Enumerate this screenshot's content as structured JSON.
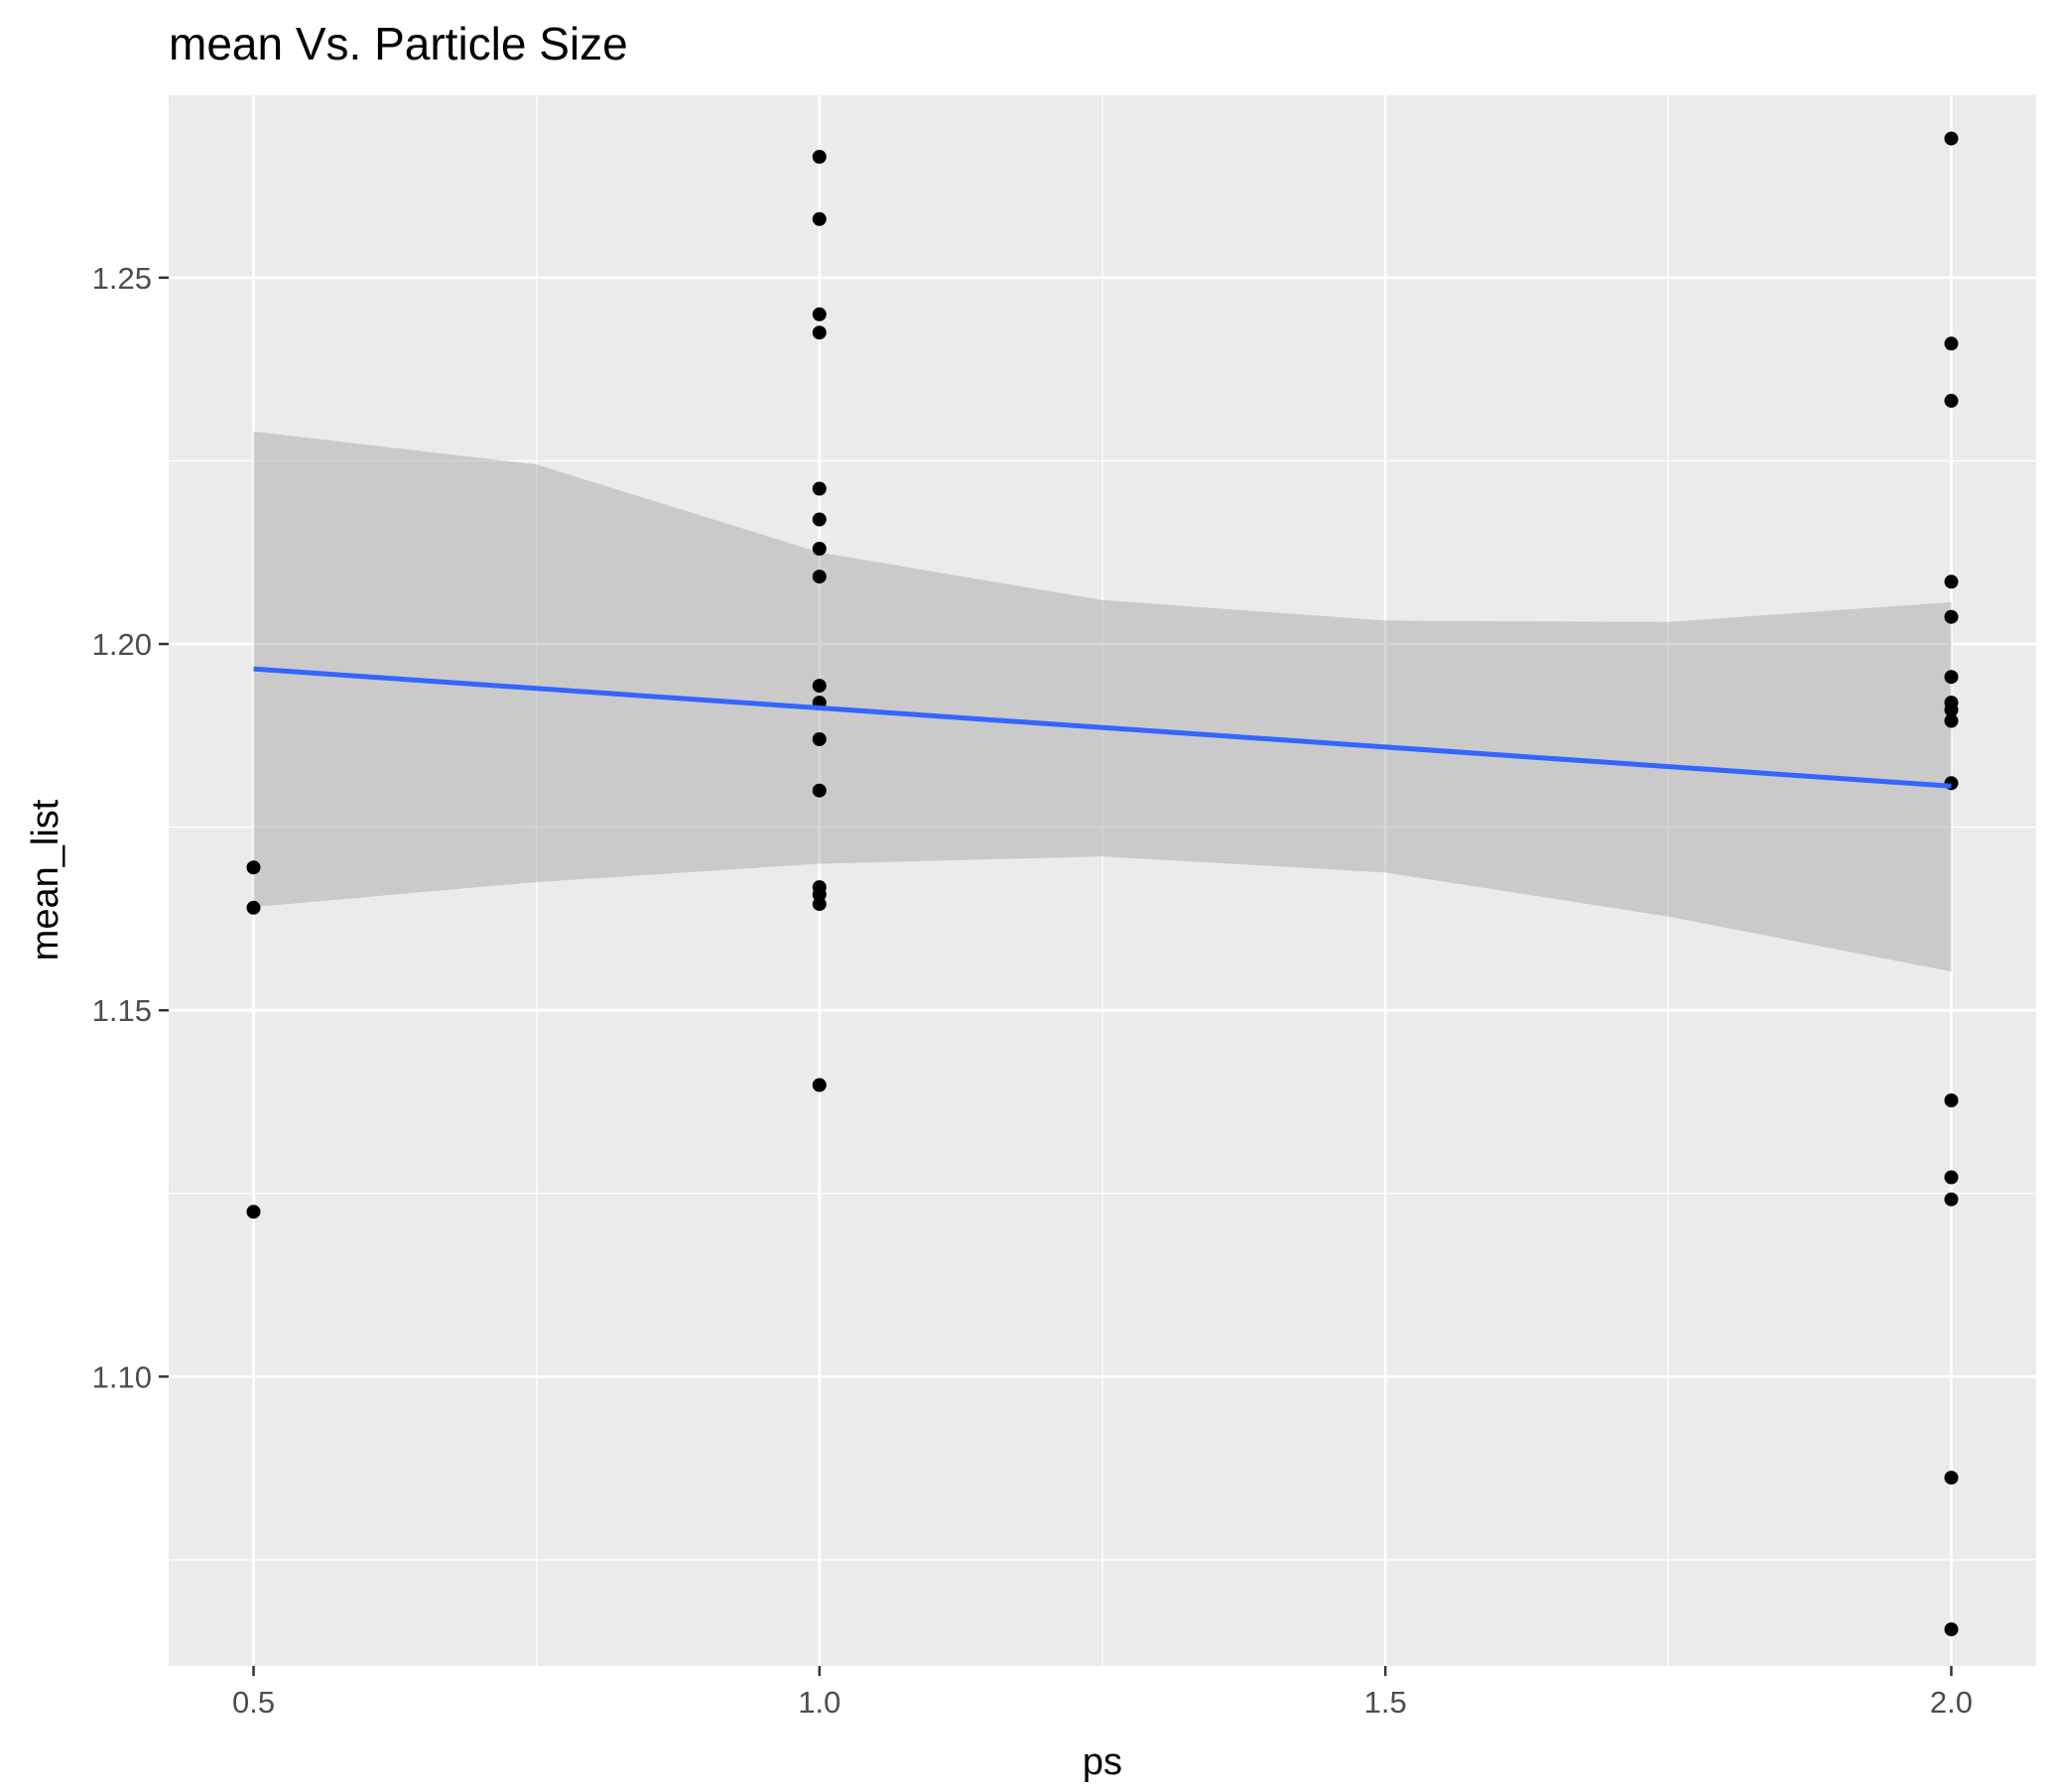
{
  "chart_data": {
    "type": "scatter",
    "title": "mean Vs. Particle Size",
    "xlabel": "ps",
    "ylabel": "mean_list",
    "xlim": [
      0.425,
      2.075
    ],
    "ylim": [
      1.0605,
      1.2749
    ],
    "x_ticks": [
      0.5,
      1.0,
      1.5,
      2.0
    ],
    "x_tick_labels": [
      "0.5",
      "1.0",
      "1.5",
      "2.0"
    ],
    "y_ticks": [
      1.1,
      1.15,
      1.2,
      1.25
    ],
    "y_tick_labels": [
      "1.10",
      "1.15",
      "1.20",
      "1.25"
    ],
    "grid": true,
    "panel_background": "#ebebeb",
    "point_color": "#000000",
    "points": [
      {
        "x": 0.5,
        "y": 1.1695
      },
      {
        "x": 0.5,
        "y": 1.164
      },
      {
        "x": 0.5,
        "y": 1.1225
      },
      {
        "x": 1.0,
        "y": 1.2665
      },
      {
        "x": 1.0,
        "y": 1.258
      },
      {
        "x": 1.0,
        "y": 1.245
      },
      {
        "x": 1.0,
        "y": 1.2425
      },
      {
        "x": 1.0,
        "y": 1.2212
      },
      {
        "x": 1.0,
        "y": 1.217
      },
      {
        "x": 1.0,
        "y": 1.213
      },
      {
        "x": 1.0,
        "y": 1.2092
      },
      {
        "x": 1.0,
        "y": 1.1943
      },
      {
        "x": 1.0,
        "y": 1.192
      },
      {
        "x": 1.0,
        "y": 1.187
      },
      {
        "x": 1.0,
        "y": 1.18
      },
      {
        "x": 1.0,
        "y": 1.1668
      },
      {
        "x": 1.0,
        "y": 1.1658
      },
      {
        "x": 1.0,
        "y": 1.1645
      },
      {
        "x": 1.0,
        "y": 1.1398
      },
      {
        "x": 2.0,
        "y": 1.269
      },
      {
        "x": 2.0,
        "y": 1.241
      },
      {
        "x": 2.0,
        "y": 1.2332
      },
      {
        "x": 2.0,
        "y": 1.2085
      },
      {
        "x": 2.0,
        "y": 1.2037
      },
      {
        "x": 2.0,
        "y": 1.1955
      },
      {
        "x": 2.0,
        "y": 1.192
      },
      {
        "x": 2.0,
        "y": 1.191
      },
      {
        "x": 2.0,
        "y": 1.1895
      },
      {
        "x": 2.0,
        "y": 1.181
      },
      {
        "x": 2.0,
        "y": 1.1377
      },
      {
        "x": 2.0,
        "y": 1.1272
      },
      {
        "x": 2.0,
        "y": 1.1242
      },
      {
        "x": 2.0,
        "y": 1.0862
      },
      {
        "x": 2.0,
        "y": 1.0655
      }
    ],
    "fit": {
      "method": "linear",
      "color": "#3366ff",
      "band_color": "#999999",
      "x": [
        0.5,
        2.0
      ],
      "y": [
        1.1966,
        1.1806
      ],
      "band": [
        {
          "x": 0.5,
          "lower": 1.1641,
          "upper": 1.229
        },
        {
          "x": 0.75,
          "lower": 1.1675,
          "upper": 1.2245
        },
        {
          "x": 1.0,
          "lower": 1.17,
          "upper": 1.2125
        },
        {
          "x": 1.25,
          "lower": 1.171,
          "upper": 1.206
        },
        {
          "x": 1.5,
          "lower": 1.1688,
          "upper": 1.2032
        },
        {
          "x": 1.75,
          "lower": 1.1628,
          "upper": 1.203
        },
        {
          "x": 2.0,
          "lower": 1.1553,
          "upper": 1.2057
        }
      ]
    }
  }
}
